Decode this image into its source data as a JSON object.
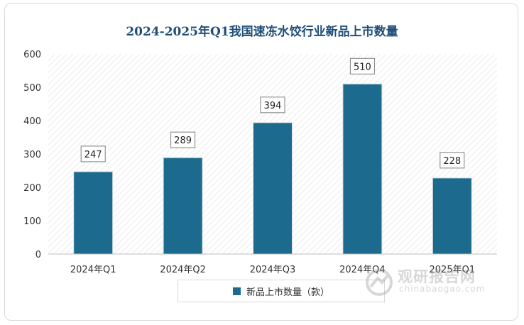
{
  "chart_data": {
    "type": "bar",
    "title": "2024-2025年Q1我国速冻水饺行业新品上市数量",
    "categories": [
      "2024年Q1",
      "2024年Q2",
      "2024年Q3",
      "2024年Q4",
      "2025年Q1"
    ],
    "series": [
      {
        "name": "新品上市数量（款）",
        "values": [
          247,
          289,
          394,
          510,
          228
        ]
      }
    ],
    "ylim": [
      0,
      600
    ],
    "yticks": [
      0,
      100,
      200,
      300,
      400,
      500,
      600
    ],
    "grid": false,
    "legend": "bottom",
    "colors": {
      "bar": "#1c6a8e",
      "title": "#1f4e79",
      "hatch": "#ececec"
    }
  },
  "watermark": {
    "name": "观研报告网",
    "url": "chinabaogao.com"
  }
}
